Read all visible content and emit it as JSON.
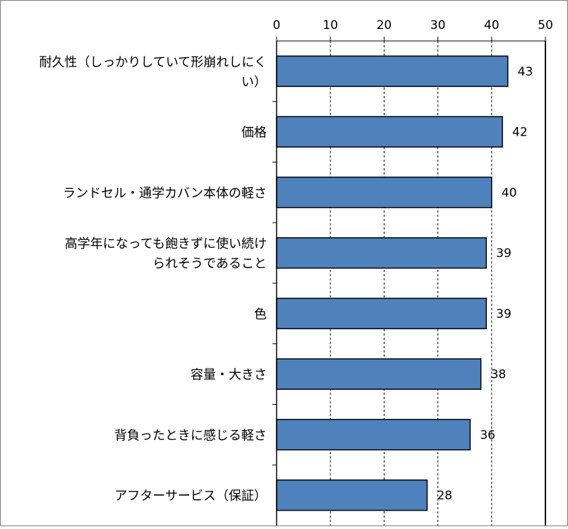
{
  "chart_data": {
    "type": "bar",
    "orientation": "horizontal",
    "categories": [
      "耐久性（しっかりしていて形崩れしにくい）",
      "価格",
      "ランドセル・通学カバン本体の軽さ",
      "高学年になっても飽きずに使い続けられそうであること",
      "色",
      "容量・大きさ",
      "背負ったときに感じる軽さ",
      "アフターサービス（保証）"
    ],
    "category_lines": [
      [
        "耐久性（しっかりしていて形崩れしにく",
        "い）"
      ],
      [
        "価格"
      ],
      [
        "ランドセル・通学カバン本体の軽さ"
      ],
      [
        "高学年になっても飽きずに使い続け",
        "られそうであること"
      ],
      [
        "色"
      ],
      [
        "容量・大きさ"
      ],
      [
        "背負ったときに感じる軽さ"
      ],
      [
        "アフターサービス（保証）"
      ]
    ],
    "values": [
      43,
      42,
      40,
      39,
      39,
      38,
      36,
      28
    ],
    "data_labels": [
      "43",
      "42",
      "40",
      "39",
      "39",
      "38",
      "36",
      "28"
    ],
    "x_ticks": [
      0,
      10,
      20,
      30,
      40,
      50
    ],
    "x_tick_labels": [
      "0",
      "10",
      "20",
      "30",
      "40",
      "50"
    ],
    "xlim": [
      0,
      50
    ],
    "axis_position": "top",
    "grid": true,
    "legend": "none",
    "bar_color": "#4f81bd",
    "bar_edge_color": "#000000",
    "grid_color": "#000000",
    "title": "",
    "xlabel": "",
    "ylabel": ""
  }
}
